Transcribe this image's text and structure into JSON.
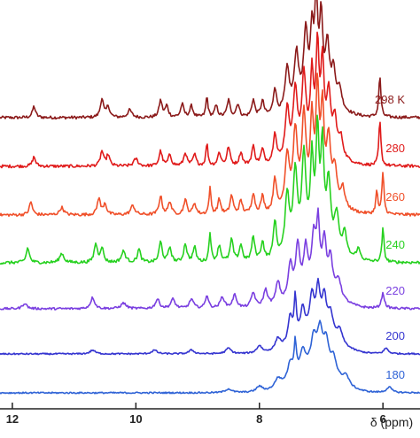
{
  "chart_data": {
    "type": "line",
    "xlabel": "δ (ppm)",
    "x_reversed": true,
    "xlim": [
      12.2,
      5.4
    ],
    "x_ticks": [
      {
        "value": 12,
        "label": "12"
      },
      {
        "value": 10,
        "label": "10"
      },
      {
        "value": 8,
        "label": "8"
      },
      {
        "value": 6,
        "label": "6"
      }
    ],
    "grid": false,
    "legend": "labels at right end of each trace",
    "series": [
      {
        "name": "298 K",
        "color": "#8b1a1a",
        "noise": 0.2,
        "broad": 1.0,
        "peaks": [
          [
            11.65,
            6,
            0.03
          ],
          [
            10.55,
            10,
            0.03
          ],
          [
            10.45,
            6,
            0.03
          ],
          [
            10.1,
            4,
            0.04
          ],
          [
            9.6,
            9,
            0.03
          ],
          [
            9.5,
            6,
            0.03
          ],
          [
            9.25,
            7,
            0.03
          ],
          [
            9.1,
            6,
            0.03
          ],
          [
            8.85,
            11,
            0.02
          ],
          [
            8.7,
            6,
            0.03
          ],
          [
            8.5,
            9,
            0.03
          ],
          [
            8.35,
            7,
            0.03
          ],
          [
            8.1,
            9,
            0.03
          ],
          [
            7.95,
            8,
            0.03
          ],
          [
            7.75,
            14,
            0.03
          ],
          [
            7.55,
            22,
            0.04
          ],
          [
            7.4,
            28,
            0.04
          ],
          [
            7.25,
            36,
            0.04
          ],
          [
            7.15,
            34,
            0.03
          ],
          [
            7.08,
            50,
            0.03
          ],
          [
            7.0,
            42,
            0.03
          ],
          [
            6.9,
            30,
            0.04
          ],
          [
            6.8,
            18,
            0.04
          ],
          [
            6.7,
            10,
            0.04
          ],
          [
            6.05,
            22,
            0.02
          ]
        ]
      },
      {
        "name": "280",
        "color": "#e01b1b",
        "noise": 0.2,
        "broad": 1.0,
        "peaks": [
          [
            11.65,
            5,
            0.03
          ],
          [
            10.55,
            8,
            0.03
          ],
          [
            10.45,
            6,
            0.03
          ],
          [
            10.0,
            4,
            0.04
          ],
          [
            9.6,
            8,
            0.03
          ],
          [
            9.45,
            6,
            0.03
          ],
          [
            9.2,
            7,
            0.03
          ],
          [
            9.05,
            6,
            0.03
          ],
          [
            8.85,
            12,
            0.02
          ],
          [
            8.65,
            7,
            0.03
          ],
          [
            8.5,
            10,
            0.03
          ],
          [
            8.3,
            7,
            0.03
          ],
          [
            8.1,
            10,
            0.03
          ],
          [
            7.95,
            8,
            0.03
          ],
          [
            7.75,
            16,
            0.03
          ],
          [
            7.55,
            26,
            0.04
          ],
          [
            7.42,
            34,
            0.04
          ],
          [
            7.28,
            40,
            0.04
          ],
          [
            7.15,
            38,
            0.03
          ],
          [
            7.06,
            52,
            0.03
          ],
          [
            6.98,
            44,
            0.03
          ],
          [
            6.88,
            30,
            0.04
          ],
          [
            6.78,
            18,
            0.04
          ],
          [
            6.68,
            10,
            0.04
          ],
          [
            6.05,
            24,
            0.02
          ]
        ]
      },
      {
        "name": "260",
        "color": "#f0502a",
        "noise": 0.2,
        "broad": 1.0,
        "peaks": [
          [
            11.7,
            7,
            0.03
          ],
          [
            11.2,
            4,
            0.04
          ],
          [
            10.6,
            9,
            0.03
          ],
          [
            10.5,
            6,
            0.03
          ],
          [
            10.05,
            5,
            0.04
          ],
          [
            9.6,
            10,
            0.03
          ],
          [
            9.45,
            7,
            0.03
          ],
          [
            9.2,
            8,
            0.03
          ],
          [
            9.05,
            6,
            0.03
          ],
          [
            8.8,
            14,
            0.02
          ],
          [
            8.65,
            8,
            0.03
          ],
          [
            8.45,
            10,
            0.03
          ],
          [
            8.3,
            7,
            0.03
          ],
          [
            8.1,
            11,
            0.03
          ],
          [
            7.95,
            9,
            0.03
          ],
          [
            7.75,
            18,
            0.03
          ],
          [
            7.55,
            28,
            0.04
          ],
          [
            7.42,
            38,
            0.04
          ],
          [
            7.28,
            44,
            0.04
          ],
          [
            7.15,
            40,
            0.03
          ],
          [
            7.06,
            55,
            0.03
          ],
          [
            6.98,
            46,
            0.03
          ],
          [
            6.88,
            32,
            0.04
          ],
          [
            6.78,
            18,
            0.04
          ],
          [
            6.65,
            10,
            0.04
          ],
          [
            6.1,
            12,
            0.02
          ],
          [
            6.0,
            22,
            0.02
          ]
        ]
      },
      {
        "name": "240",
        "color": "#27d120",
        "noise": 0.2,
        "broad": 1.0,
        "peaks": [
          [
            11.75,
            8,
            0.03
          ],
          [
            11.2,
            5,
            0.04
          ],
          [
            10.65,
            10,
            0.03
          ],
          [
            10.55,
            8,
            0.03
          ],
          [
            10.2,
            6,
            0.04
          ],
          [
            9.95,
            7,
            0.03
          ],
          [
            9.6,
            11,
            0.03
          ],
          [
            9.45,
            8,
            0.03
          ],
          [
            9.2,
            10,
            0.03
          ],
          [
            9.05,
            8,
            0.03
          ],
          [
            8.8,
            16,
            0.02
          ],
          [
            8.65,
            9,
            0.03
          ],
          [
            8.45,
            12,
            0.03
          ],
          [
            8.3,
            9,
            0.03
          ],
          [
            8.1,
            13,
            0.03
          ],
          [
            7.95,
            10,
            0.03
          ],
          [
            7.75,
            20,
            0.03
          ],
          [
            7.55,
            32,
            0.04
          ],
          [
            7.42,
            42,
            0.04
          ],
          [
            7.28,
            48,
            0.04
          ],
          [
            7.15,
            44,
            0.03
          ],
          [
            7.06,
            58,
            0.03
          ],
          [
            6.98,
            50,
            0.03
          ],
          [
            6.88,
            34,
            0.04
          ],
          [
            6.75,
            20,
            0.04
          ],
          [
            6.62,
            12,
            0.04
          ],
          [
            6.4,
            6,
            0.04
          ],
          [
            6.0,
            18,
            0.02
          ]
        ]
      },
      {
        "name": "220",
        "color": "#7a3fe0",
        "noise": 0.15,
        "broad": 1.2,
        "peaks": [
          [
            11.8,
            3,
            0.04
          ],
          [
            10.7,
            6,
            0.04
          ],
          [
            10.2,
            3,
            0.05
          ],
          [
            9.65,
            5,
            0.04
          ],
          [
            9.4,
            5,
            0.04
          ],
          [
            9.1,
            5,
            0.04
          ],
          [
            8.85,
            7,
            0.03
          ],
          [
            8.6,
            6,
            0.04
          ],
          [
            8.4,
            7,
            0.04
          ],
          [
            8.1,
            8,
            0.04
          ],
          [
            7.9,
            9,
            0.04
          ],
          [
            7.7,
            12,
            0.04
          ],
          [
            7.5,
            18,
            0.04
          ],
          [
            7.38,
            26,
            0.04
          ],
          [
            7.25,
            22,
            0.04
          ],
          [
            7.12,
            26,
            0.04
          ],
          [
            7.05,
            32,
            0.03
          ],
          [
            6.95,
            26,
            0.04
          ],
          [
            6.85,
            18,
            0.04
          ],
          [
            6.72,
            10,
            0.05
          ],
          [
            6.0,
            8,
            0.03
          ]
        ]
      },
      {
        "name": "200",
        "color": "#3535d0",
        "noise": 0.1,
        "broad": 1.5,
        "peaks": [
          [
            10.7,
            2,
            0.05
          ],
          [
            9.7,
            2,
            0.05
          ],
          [
            9.1,
            2,
            0.05
          ],
          [
            8.5,
            3,
            0.05
          ],
          [
            8.0,
            4,
            0.05
          ],
          [
            7.7,
            6,
            0.05
          ],
          [
            7.5,
            14,
            0.04
          ],
          [
            7.42,
            22,
            0.02
          ],
          [
            7.3,
            14,
            0.04
          ],
          [
            7.15,
            18,
            0.04
          ],
          [
            7.05,
            22,
            0.04
          ],
          [
            6.95,
            18,
            0.04
          ],
          [
            6.85,
            12,
            0.05
          ],
          [
            6.7,
            7,
            0.05
          ],
          [
            5.95,
            3,
            0.04
          ]
        ]
      },
      {
        "name": "180",
        "color": "#2f63d6",
        "noise": 0.1,
        "broad": 1.8,
        "peaks": [
          [
            8.5,
            2,
            0.06
          ],
          [
            8.0,
            3,
            0.06
          ],
          [
            7.7,
            5,
            0.06
          ],
          [
            7.5,
            9,
            0.05
          ],
          [
            7.42,
            17,
            0.02
          ],
          [
            7.3,
            10,
            0.05
          ],
          [
            7.12,
            14,
            0.05
          ],
          [
            7.02,
            18,
            0.05
          ],
          [
            6.92,
            14,
            0.05
          ],
          [
            6.8,
            9,
            0.05
          ],
          [
            6.6,
            5,
            0.06
          ],
          [
            5.9,
            3,
            0.05
          ]
        ]
      }
    ]
  }
}
